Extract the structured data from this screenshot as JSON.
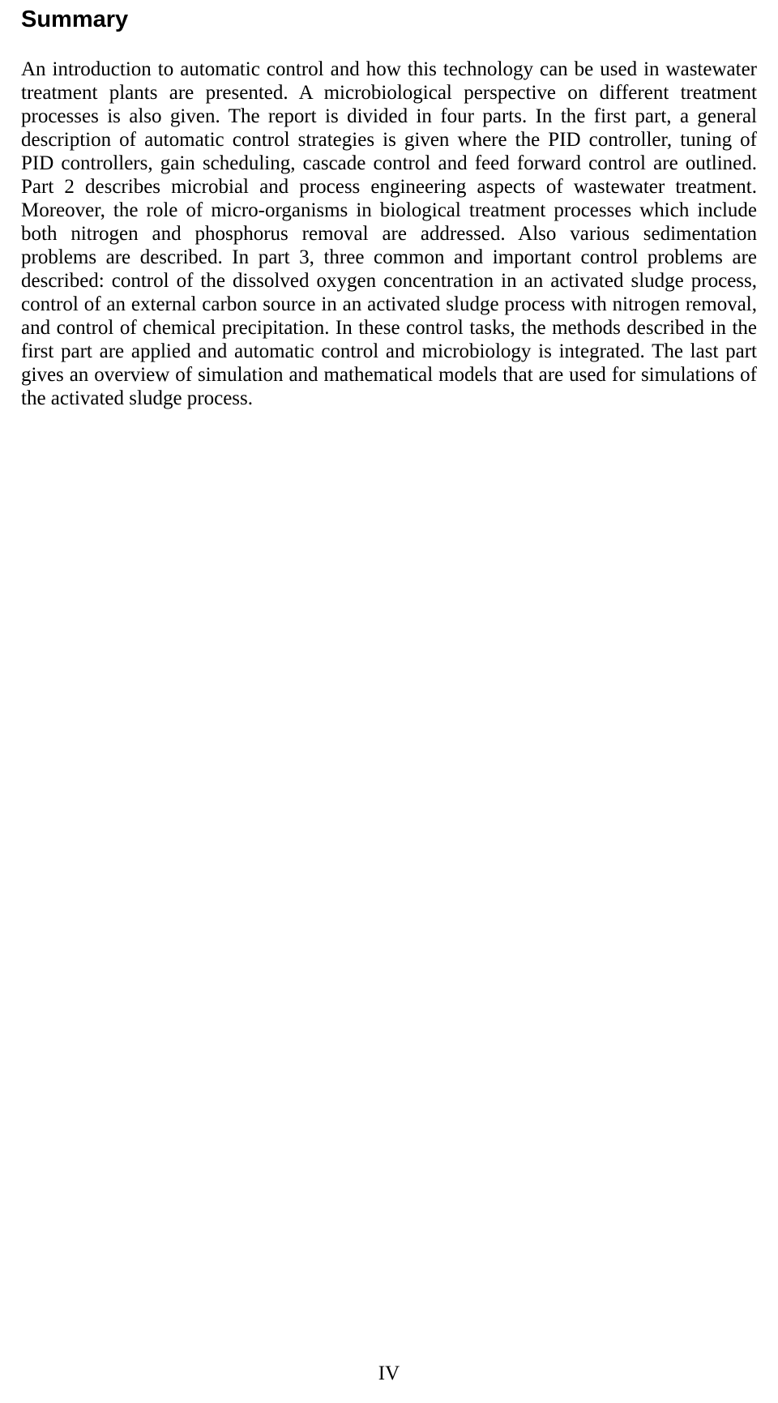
{
  "heading": "Summary",
  "body": "An introduction to automatic control and how this technology can be used in wastewater treatment plants are presented. A microbiological perspective on different treatment processes is also given. The report is divided in four parts. In the first part, a general description of automatic control strategies is given where the PID controller, tuning of PID controllers, gain scheduling, cascade control and feed forward control are outlined. Part 2 describes microbial and process engineering aspects of wastewater treatment. Moreover, the role of micro-organisms in biological treatment processes which include both nitrogen and phosphorus removal are addressed. Also various sedimentation problems are described. In part 3, three common and important control problems are described: control of the dissolved oxygen concentration in an activated sludge process, control of an external carbon source in an activated sludge process with nitrogen removal, and control of chemical precipitation. In these control tasks, the methods described in the first part are applied and automatic control and microbiology is integrated. The last part gives an overview of simulation and mathematical models that are used for simulations of the activated sludge process.",
  "page_number": "IV"
}
